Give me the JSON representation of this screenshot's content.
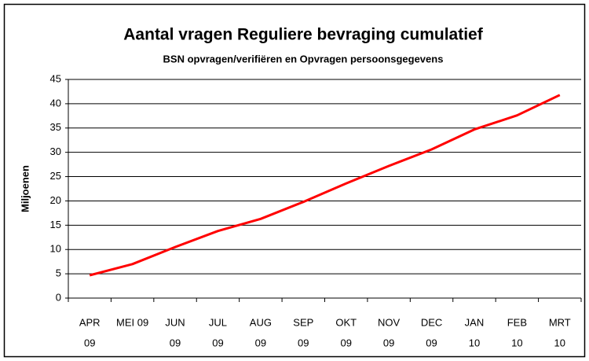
{
  "chart_data": {
    "type": "line",
    "title": "Aantal vragen Reguliere bevraging cumulatief",
    "subtitle": "BSN opvragen/verifiëren en Opvragen persoonsgegevens",
    "y_label": "Miljoenen",
    "categories": [
      [
        "APR",
        "09"
      ],
      [
        "MEI 09"
      ],
      [
        "JUN",
        "09"
      ],
      [
        "JUL",
        "09"
      ],
      [
        "AUG",
        "09"
      ],
      [
        "SEP",
        "09"
      ],
      [
        "OKT",
        "09"
      ],
      [
        "NOV",
        "09"
      ],
      [
        "DEC",
        "09"
      ],
      [
        "JAN",
        "10"
      ],
      [
        "FEB",
        "10"
      ],
      [
        "MRT",
        "10"
      ]
    ],
    "values": [
      4.7,
      7,
      10.5,
      13.8,
      16.3,
      19.8,
      23.6,
      27.2,
      30.6,
      34.7,
      37.6,
      41.8
    ],
    "color": "#ff0000",
    "ylim": [
      0,
      45
    ],
    "yticks": [
      0,
      5,
      10,
      15,
      20,
      25,
      30,
      35,
      40,
      45
    ],
    "grid": true
  }
}
